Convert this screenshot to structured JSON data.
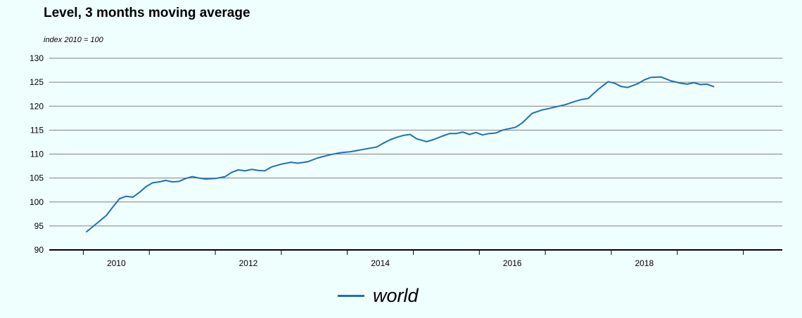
{
  "title": "Level, 3 months moving average",
  "subtitle": "index 2010 = 100",
  "colors": {
    "background": "#effffe",
    "series": "#1f6fb4",
    "grid": "#808080",
    "axis": "#000000"
  },
  "chart_data": {
    "type": "line",
    "title": "Level, 3 months moving average",
    "subtitle": "index 2010 = 100",
    "xlabel": "",
    "ylabel": "",
    "ylim": [
      90,
      130
    ],
    "xlim": [
      2009.0,
      2020.0
    ],
    "yticks": [
      "90",
      "95",
      "100",
      "105",
      "110",
      "115",
      "120",
      "125",
      "130"
    ],
    "xticks": [
      "2010",
      "2012",
      "2014",
      "2016",
      "2018"
    ],
    "grid": true,
    "legend": "bottom-center",
    "series": [
      {
        "name": "world",
        "x": [
          2009.55,
          2009.7,
          2009.85,
          2009.95,
          2010.05,
          2010.15,
          2010.25,
          2010.35,
          2010.45,
          2010.55,
          2010.65,
          2010.75,
          2010.85,
          2010.95,
          2011.05,
          2011.15,
          2011.25,
          2011.35,
          2011.5,
          2011.65,
          2011.75,
          2011.85,
          2011.95,
          2012.05,
          2012.15,
          2012.25,
          2012.35,
          2012.5,
          2012.65,
          2012.75,
          2012.9,
          2013.05,
          2013.25,
          2013.4,
          2013.55,
          2013.75,
          2013.95,
          2014.05,
          2014.15,
          2014.25,
          2014.35,
          2014.45,
          2014.55,
          2014.7,
          2014.8,
          2014.95,
          2015.05,
          2015.15,
          2015.25,
          2015.35,
          2015.45,
          2015.55,
          2015.65,
          2015.75,
          2015.85,
          2015.95,
          2016.05,
          2016.15,
          2016.3,
          2016.45,
          2016.55,
          2016.7,
          2016.8,
          2016.95,
          2017.05,
          2017.15,
          2017.3,
          2017.45,
          2017.55,
          2017.65,
          2017.75,
          2017.9,
          2018.0,
          2018.1,
          2018.25,
          2018.4,
          2018.55,
          2018.65,
          2018.75,
          2018.85,
          2018.95,
          2019.05
        ],
        "y": [
          93.8,
          95.5,
          97.2,
          99.0,
          100.7,
          101.2,
          101.0,
          102.0,
          103.2,
          104.0,
          104.2,
          104.5,
          104.2,
          104.3,
          104.9,
          105.3,
          105.0,
          104.8,
          104.9,
          105.3,
          106.2,
          106.7,
          106.5,
          106.8,
          106.6,
          106.5,
          107.3,
          107.9,
          108.3,
          108.1,
          108.4,
          109.2,
          109.9,
          110.3,
          110.5,
          111.0,
          111.5,
          112.3,
          113.0,
          113.5,
          113.9,
          114.1,
          113.2,
          112.6,
          113.0,
          113.8,
          114.3,
          114.3,
          114.6,
          114.1,
          114.5,
          114.0,
          114.3,
          114.4,
          115.0,
          115.3,
          115.6,
          116.5,
          118.5,
          119.2,
          119.5,
          120.0,
          120.3,
          121.0,
          121.4,
          121.6,
          123.5,
          125.1,
          124.8,
          124.1,
          123.9,
          124.7,
          125.5,
          126.0,
          126.1,
          125.3,
          124.8,
          124.6,
          124.9,
          124.5,
          124.6,
          124.1
        ]
      }
    ]
  }
}
